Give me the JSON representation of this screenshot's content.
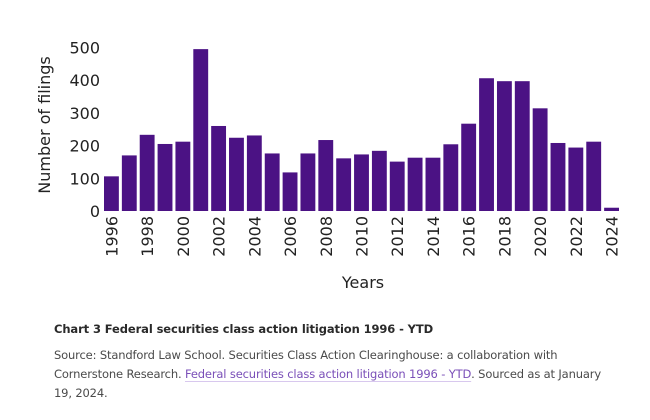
{
  "chart_data": {
    "type": "bar",
    "title": "Chart 3 Federal securities class action litigation 1996 - YTD",
    "xlabel": "Years",
    "ylabel": "Number of filings",
    "ylim": [
      0,
      500
    ],
    "yticks": [
      0,
      100,
      200,
      300,
      400,
      500
    ],
    "xtick_labels": [
      "1996",
      "1998",
      "2000",
      "2002",
      "2004",
      "2006",
      "2008",
      "2010",
      "2012",
      "2014",
      "2016",
      "2018",
      "2020",
      "2022",
      "2024"
    ],
    "grid": false,
    "legend": "none",
    "bar_color": "#4b1284",
    "categories": [
      "1996",
      "1997",
      "1998",
      "1999",
      "2000",
      "2001",
      "2002",
      "2003",
      "2004",
      "2005",
      "2006",
      "2007",
      "2008",
      "2009",
      "2010",
      "2011",
      "2012",
      "2013",
      "2014",
      "2015",
      "2016",
      "2017",
      "2018",
      "2019",
      "2020",
      "2021",
      "2022",
      "2023",
      "2024"
    ],
    "values": [
      106,
      170,
      233,
      205,
      212,
      495,
      260,
      224,
      231,
      176,
      118,
      176,
      217,
      161,
      173,
      184,
      151,
      163,
      163,
      204,
      267,
      406,
      397,
      397,
      314,
      208,
      194,
      212,
      10
    ]
  },
  "caption": {
    "title": "Chart 3 Federal securities class action litigation 1996 - YTD",
    "source_prefix": "Source: Standford Law School. Securities Class Action Clearinghouse: a collaboration with Cornerstone Research. ",
    "link_text": "Federal securities class action litigation 1996 - YTD",
    "source_suffix": ". Sourced as at January 19, 2024.",
    "link_color": "#7a4fb8"
  }
}
